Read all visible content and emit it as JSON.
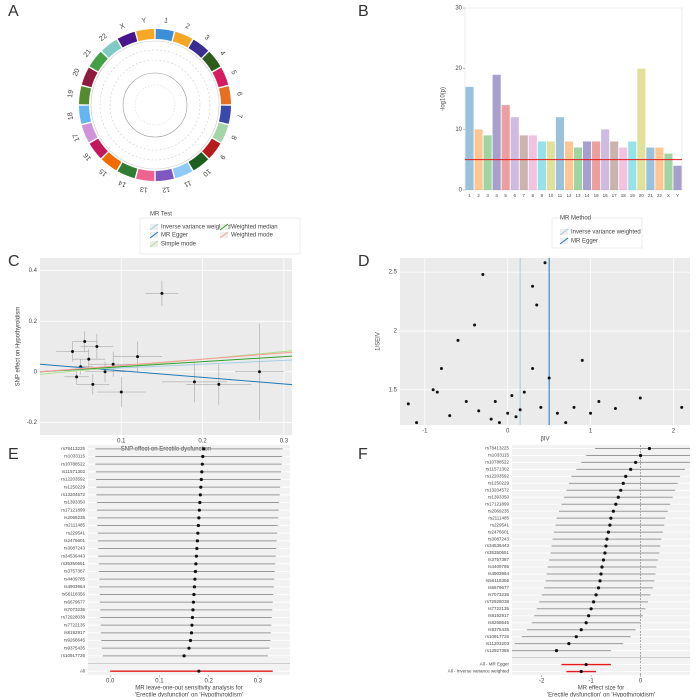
{
  "chart_data": [
    {
      "type": "circos",
      "panel": "A",
      "categories": [
        "1",
        "2",
        "3",
        "4",
        "5",
        "6",
        "7",
        "8",
        "9",
        "10",
        "11",
        "12",
        "13",
        "14",
        "15",
        "16",
        "17",
        "18",
        "19",
        "20",
        "21",
        "22",
        "X",
        "Y"
      ],
      "colors": [
        "#3a8fd6",
        "#f5a623",
        "#3b2d8f",
        "#2e5a1c",
        "#d81b60",
        "#e76f24",
        "#3949ab",
        "#a5d6a7",
        "#b71c1c",
        "#1b5e20",
        "#90caf9",
        "#7e57c2",
        "#f06292",
        "#2e7d32",
        "#ef6c00",
        "#c2185b",
        "#ce93d8",
        "#64b5f6",
        "#558b2f",
        "#8d1b3d",
        "#43a047",
        "#80cbc4",
        "#4a148c",
        "#f9a825"
      ]
    },
    {
      "type": "manhattan",
      "panel": "B",
      "y_label": "-log10(p)",
      "categories": [
        "1",
        "2",
        "3",
        "4",
        "5",
        "6",
        "7",
        "8",
        "9",
        "10",
        "11",
        "12",
        "13",
        "14",
        "15",
        "16",
        "17",
        "18",
        "19",
        "20",
        "21",
        "22",
        "X",
        "Y"
      ],
      "values": [
        17,
        10,
        9,
        19,
        14,
        12,
        9,
        9,
        8,
        8,
        12,
        8,
        7,
        8,
        8,
        10,
        8,
        7,
        8,
        20,
        7,
        7,
        6,
        4
      ],
      "colors": [
        "#1f77b4",
        "#ff7f0e",
        "#2ca02c",
        "#3b2d8f",
        "#d62728",
        "#9467bd",
        "#8c564b",
        "#e377c2",
        "#17becf",
        "#bcbd22",
        "#1f77b4",
        "#ff7f0e",
        "#2ca02c",
        "#3b2d8f",
        "#d62728",
        "#9467bd",
        "#8c564b",
        "#e377c2",
        "#17becf",
        "#bcbd22",
        "#1f77b4",
        "#ff7f0e",
        "#2ca02c",
        "#3b2d8f"
      ],
      "ylim": [
        0,
        30
      ],
      "yticks": [
        0,
        10,
        20,
        30
      ],
      "threshold": 5,
      "threshold_color": "#e41a1c"
    },
    {
      "type": "mr_scatter",
      "panel": "C",
      "x_label": "SNP effect on Erectile dysfunction",
      "y_label": "SNP effect on Hypothyroidism",
      "legend_title": "MR Test",
      "x": [
        0.04,
        0.05,
        0.06,
        0.045,
        0.07,
        0.08,
        0.055,
        0.065,
        0.09,
        0.1,
        0.12,
        0.15,
        0.19,
        0.22,
        0.27
      ],
      "values": [
        0.08,
        0.02,
        0.05,
        -0.02,
        0.1,
        0.0,
        0.12,
        -0.05,
        0.03,
        -0.08,
        0.06,
        0.31,
        -0.04,
        -0.05,
        0.0
      ],
      "x_err": [
        0.02,
        0.015,
        0.02,
        0.015,
        0.02,
        0.025,
        0.015,
        0.02,
        0.03,
        0.03,
        0.03,
        0.02,
        0.04,
        0.04,
        0.03
      ],
      "y_err": [
        0.04,
        0.03,
        0.04,
        0.03,
        0.05,
        0.04,
        0.04,
        0.04,
        0.05,
        0.06,
        0.06,
        0.05,
        0.08,
        0.08,
        0.19
      ],
      "methods": [
        {
          "name": "Inverse variance weighted",
          "color": "#a6cee3",
          "intercept": 0.0,
          "slope": 0.15
        },
        {
          "name": "MR Egger",
          "color": "#1f78b4",
          "intercept": 0.03,
          "slope": -0.26
        },
        {
          "name": "Simple mode",
          "color": "#b2df8a",
          "intercept": -0.01,
          "slope": 0.3
        },
        {
          "name": "Weighted median",
          "color": "#33a02c",
          "intercept": 0.0,
          "slope": 0.2
        },
        {
          "name": "Weighted mode",
          "color": "#fb9a99",
          "intercept": 0.0,
          "slope": 0.25
        }
      ],
      "xlim": [
        0,
        0.31
      ],
      "xticks": [
        0.1,
        0.2,
        0.3
      ],
      "ylim": [
        -0.25,
        0.45
      ],
      "yticks": [
        -0.2,
        0.0,
        0.2,
        0.4
      ],
      "grid": true
    },
    {
      "type": "funnel",
      "panel": "D",
      "x_label": "βIV",
      "y_label": "1/SEIV",
      "legend_title": "MR Method",
      "x": [
        -1.2,
        -1.1,
        -0.9,
        -0.8,
        -0.85,
        -0.6,
        -0.7,
        -0.4,
        -0.3,
        -0.35,
        -0.2,
        -0.15,
        -0.1,
        0.0,
        0.05,
        0.1,
        0.15,
        0.2,
        0.3,
        0.35,
        0.3,
        0.4,
        0.45,
        0.6,
        0.7,
        0.8,
        1.0,
        1.1,
        1.3,
        1.6,
        2.1,
        0.9,
        0.5,
        -0.5
      ],
      "values": [
        1.38,
        1.22,
        1.5,
        1.68,
        1.48,
        1.92,
        1.28,
        2.05,
        2.48,
        1.32,
        1.25,
        1.4,
        1.22,
        1.3,
        1.45,
        1.27,
        1.33,
        1.48,
        2.38,
        2.22,
        1.68,
        1.35,
        2.58,
        1.3,
        1.22,
        1.35,
        1.3,
        1.4,
        1.34,
        1.43,
        1.35,
        1.75,
        1.6,
        1.4
      ],
      "methods": [
        {
          "name": "Inverse variance weighted",
          "color": "#a6cee3",
          "value": 0.15
        },
        {
          "name": "MR Egger",
          "color": "#1f78b4",
          "value": 0.5
        }
      ],
      "xlim": [
        -1.3,
        2.2
      ],
      "xticks": [
        -1,
        0,
        1,
        2
      ],
      "ylim": [
        1.2,
        2.62
      ],
      "yticks": [
        1.5,
        2,
        2.5
      ],
      "grid": true
    },
    {
      "type": "forest",
      "panel": "E",
      "x_label": [
        "MR leave-one-out sensitivity analysis for",
        "'Erectile dysfunction' on 'Hypothyroidism'"
      ],
      "categories": [
        "rs78413225",
        "rs1033115",
        "rs10788522",
        "rs11571302",
        "rs12203592",
        "rs1250229",
        "rs13204572",
        "rs1393350",
        "rs17121899",
        "rs2069235",
        "rs2111485",
        "rs229541",
        "rs2476601",
        "rs3087243",
        "rs34536443",
        "rs35350651",
        "rs3757387",
        "rs4409785",
        "rs4903964",
        "rs56118356",
        "rs6679677",
        "rs7073236",
        "rs72928038",
        "rs7722135",
        "rs8192917",
        "rs9268645",
        "rs9375435",
        "rs10917726",
        "All"
      ],
      "values": [
        0.19,
        0.188,
        0.187,
        0.186,
        0.185,
        0.184,
        0.183,
        0.182,
        0.181,
        0.18,
        0.179,
        0.178,
        0.177,
        0.176,
        0.175,
        0.174,
        0.173,
        0.172,
        0.171,
        0.17,
        0.169,
        0.168,
        0.167,
        0.166,
        0.165,
        0.163,
        0.16,
        0.15,
        0.18
      ],
      "lower": [
        -0.03,
        -0.03,
        -0.03,
        -0.029,
        -0.029,
        -0.028,
        -0.028,
        -0.027,
        -0.027,
        -0.026,
        -0.026,
        -0.025,
        -0.025,
        -0.024,
        -0.024,
        -0.023,
        -0.023,
        -0.022,
        -0.022,
        -0.021,
        -0.021,
        -0.02,
        -0.02,
        -0.019,
        -0.019,
        -0.018,
        -0.017,
        -0.015,
        0.0
      ],
      "upper": [
        0.35,
        0.349,
        0.348,
        0.347,
        0.346,
        0.345,
        0.344,
        0.343,
        0.342,
        0.341,
        0.34,
        0.339,
        0.338,
        0.337,
        0.336,
        0.335,
        0.334,
        0.333,
        0.332,
        0.331,
        0.33,
        0.329,
        0.328,
        0.327,
        0.326,
        0.325,
        0.323,
        0.32,
        0.33
      ],
      "summary_rows": 1,
      "summary_color": "#e41a1c",
      "xlim": [
        -0.045,
        0.365
      ],
      "xticks": [
        {
          "value": 0,
          "label": "0.0"
        },
        0.1,
        0.2,
        0.3
      ]
    },
    {
      "type": "forest",
      "panel": "F",
      "x_label": [
        "MR effect size for",
        "'Erectile dysfunction' on 'Hypothyroidism'"
      ],
      "categories": [
        "rs78413225",
        "rs1033115",
        "rs10788522",
        "rs11571302",
        "rs12203592",
        "rs1250229",
        "rs13204572",
        "rs1393350",
        "rs17121899",
        "rs2069235",
        "rs2111485",
        "rs229541",
        "rs2476601",
        "rs3087243",
        "rs34536443",
        "rs35350651",
        "rs3757387",
        "rs4409785",
        "rs4903964",
        "rs56118356",
        "rs6679677",
        "rs7073236",
        "rs72928038",
        "rs7722135",
        "rs8192917",
        "rs9268645",
        "rs9375435",
        "rs10917726",
        "rs11203203",
        "rs12927355",
        "All - MR Egger",
        "All - Inverse variance weighted"
      ],
      "values": [
        0.18,
        0.0,
        -0.1,
        -0.2,
        -0.3,
        -0.35,
        -0.4,
        -0.45,
        -0.5,
        -0.55,
        -0.6,
        -0.62,
        -0.65,
        -0.68,
        -0.7,
        -0.72,
        -0.75,
        -0.78,
        -0.8,
        -0.82,
        -0.85,
        -0.9,
        -0.95,
        -1.0,
        -1.05,
        -1.1,
        -1.2,
        -1.3,
        -1.45,
        -1.7,
        -1.1,
        -1.2
      ],
      "lower": [
        -0.92,
        -1.1,
        -1.2,
        -1.3,
        -1.4,
        -1.45,
        -1.5,
        -1.55,
        -1.6,
        -1.65,
        -1.7,
        -1.72,
        -1.75,
        -1.78,
        -1.8,
        -1.82,
        -1.85,
        -1.88,
        -1.9,
        -1.92,
        -1.95,
        -2.0,
        -2.05,
        -2.1,
        -2.15,
        -2.2,
        -2.3,
        -2.4,
        -2.55,
        -2.6,
        -1.6,
        -1.5
      ],
      "upper": [
        1.0,
        1.0,
        1.0,
        0.9,
        0.8,
        0.75,
        0.7,
        0.65,
        0.6,
        0.55,
        0.5,
        0.48,
        0.45,
        0.42,
        0.4,
        0.38,
        0.35,
        0.32,
        0.3,
        0.28,
        0.25,
        0.2,
        0.15,
        0.1,
        0.05,
        0.0,
        -0.1,
        -0.2,
        -0.35,
        -0.6,
        -0.6,
        -0.9
      ],
      "summary_rows": 2,
      "summary_color": "#e41a1c",
      "ref_line": 0,
      "xlim": [
        -2.6,
        1.0
      ],
      "xticks": [
        -2,
        -1,
        0
      ]
    }
  ]
}
